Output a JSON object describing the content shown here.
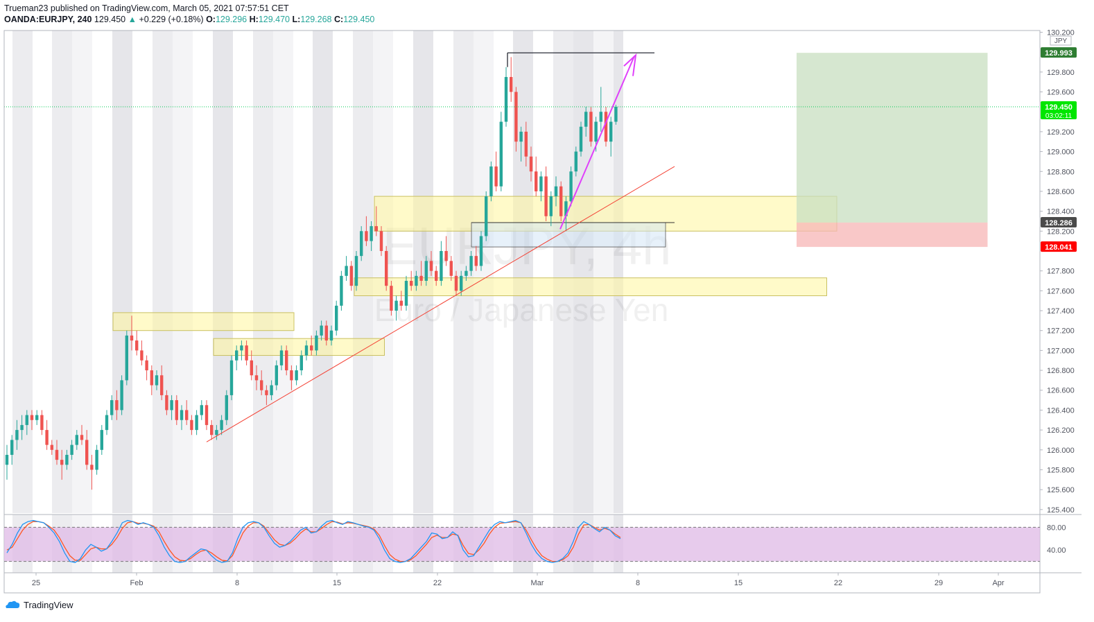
{
  "header": {
    "publisher_line": "Trueman23 published on TradingView.com, March 05, 2021 07:57:51 CET",
    "symbol": "OANDA:EURJPY, 240",
    "last": "129.450",
    "change": "+0.229 (+0.18%)",
    "o_label": "O:",
    "o": "129.296",
    "h_label": "H:",
    "h": "129.470",
    "l_label": "L:",
    "l": "129.268",
    "c_label": "C:",
    "c": "129.450"
  },
  "watermark": {
    "line1": "EURJPY, 4h",
    "line2": "Euro / Japanese Yen"
  },
  "footer": {
    "brand": "TradingView"
  },
  "colors": {
    "up": "#26a69a",
    "down": "#ef5350",
    "zone": "#fff59d",
    "long_zone": "#c8dfc0",
    "stop_zone": "#f7b5b5",
    "arrow": "#e040fb",
    "trend": "#f44336",
    "stoch_band": "#e1bee7",
    "stoch_k": "#2196f3",
    "stoch_d": "#ff5722"
  },
  "chart_data": {
    "type": "candlestick",
    "symbol": "EURJPY",
    "interval": "4h",
    "currency": "JPY",
    "y_ticks": [
      "130.200",
      "129.800",
      "129.600",
      "129.200",
      "129.000",
      "128.800",
      "128.600",
      "128.400",
      "128.200",
      "127.800",
      "127.600",
      "127.400",
      "127.200",
      "127.000",
      "126.800",
      "126.600",
      "126.400",
      "126.200",
      "126.000",
      "125.800",
      "125.600",
      "125.400"
    ],
    "ylim": [
      125.4,
      130.2
    ],
    "x_ticks": [
      "25",
      "Feb",
      "8",
      "15",
      "22",
      "Mar",
      "8",
      "15",
      "22",
      "29",
      "Apr"
    ],
    "price_labels": [
      {
        "value": 129.993,
        "text": "129.993",
        "color": "#2e7d32"
      },
      {
        "value": 129.45,
        "text": "129.450",
        "sub": "03:02:11",
        "color": "#00e600"
      },
      {
        "value": 128.286,
        "text": "128.286",
        "color": "#4a4a4a"
      },
      {
        "value": 128.041,
        "text": "128.041",
        "color": "#ff0000"
      }
    ],
    "last_price": 129.45,
    "candles": [
      [
        125.85,
        126.05,
        125.7,
        125.95
      ],
      [
        125.95,
        126.15,
        125.85,
        126.1
      ],
      [
        126.1,
        126.3,
        126.0,
        126.2
      ],
      [
        126.2,
        126.35,
        126.1,
        126.25
      ],
      [
        126.25,
        126.4,
        126.15,
        126.35
      ],
      [
        126.35,
        126.4,
        126.2,
        126.3
      ],
      [
        126.3,
        126.4,
        126.25,
        126.35
      ],
      [
        126.35,
        126.4,
        126.15,
        126.2
      ],
      [
        126.2,
        126.3,
        126.0,
        126.05
      ],
      [
        126.05,
        126.1,
        125.95,
        126.0
      ],
      [
        126.0,
        126.1,
        125.85,
        125.9
      ],
      [
        125.9,
        126.0,
        125.7,
        125.85
      ],
      [
        125.85,
        126.0,
        125.8,
        125.95
      ],
      [
        125.95,
        126.1,
        125.9,
        126.05
      ],
      [
        126.05,
        126.2,
        126.0,
        126.15
      ],
      [
        126.15,
        126.25,
        126.05,
        126.1
      ],
      [
        126.1,
        126.2,
        125.8,
        125.85
      ],
      [
        125.85,
        125.95,
        125.6,
        125.8
      ],
      [
        125.8,
        126.05,
        125.75,
        126.0
      ],
      [
        126.0,
        126.25,
        125.95,
        126.2
      ],
      [
        126.2,
        126.4,
        126.15,
        126.35
      ],
      [
        126.35,
        126.55,
        126.3,
        126.5
      ],
      [
        126.5,
        126.6,
        126.3,
        126.4
      ],
      [
        126.4,
        126.75,
        126.35,
        126.7
      ],
      [
        126.7,
        127.2,
        126.65,
        127.15
      ],
      [
        127.15,
        127.35,
        127.0,
        127.1
      ],
      [
        127.1,
        127.2,
        126.95,
        127.0
      ],
      [
        127.0,
        127.1,
        126.85,
        126.9
      ],
      [
        126.9,
        126.95,
        126.7,
        126.8
      ],
      [
        126.8,
        126.85,
        126.55,
        126.65
      ],
      [
        126.65,
        126.8,
        126.6,
        126.75
      ],
      [
        126.75,
        126.85,
        126.5,
        126.55
      ],
      [
        126.55,
        126.6,
        126.35,
        126.4
      ],
      [
        126.4,
        126.55,
        126.3,
        126.5
      ],
      [
        126.5,
        126.55,
        126.25,
        126.3
      ],
      [
        126.3,
        126.45,
        126.2,
        126.4
      ],
      [
        126.4,
        126.5,
        126.25,
        126.3
      ],
      [
        126.3,
        126.35,
        126.15,
        126.2
      ],
      [
        126.2,
        126.4,
        126.15,
        126.35
      ],
      [
        126.35,
        126.5,
        126.3,
        126.45
      ],
      [
        126.45,
        126.5,
        126.2,
        126.25
      ],
      [
        126.25,
        126.3,
        126.1,
        126.15
      ],
      [
        126.15,
        126.25,
        126.1,
        126.2
      ],
      [
        126.2,
        126.35,
        126.15,
        126.3
      ],
      [
        126.3,
        126.6,
        126.25,
        126.55
      ],
      [
        126.55,
        126.95,
        126.5,
        126.9
      ],
      [
        126.9,
        127.05,
        126.8,
        127.0
      ],
      [
        127.0,
        127.1,
        126.9,
        127.05
      ],
      [
        127.05,
        127.1,
        126.85,
        126.9
      ],
      [
        126.9,
        127.0,
        126.7,
        126.75
      ],
      [
        126.75,
        126.85,
        126.6,
        126.7
      ],
      [
        126.7,
        126.8,
        126.55,
        126.6
      ],
      [
        126.6,
        126.65,
        126.45,
        126.55
      ],
      [
        126.55,
        126.7,
        126.5,
        126.65
      ],
      [
        126.65,
        126.9,
        126.6,
        126.85
      ],
      [
        126.85,
        127.05,
        126.8,
        127.0
      ],
      [
        127.0,
        127.05,
        126.75,
        126.8
      ],
      [
        126.8,
        126.85,
        126.6,
        126.7
      ],
      [
        126.7,
        126.85,
        126.65,
        126.8
      ],
      [
        126.8,
        127.0,
        126.75,
        126.95
      ],
      [
        126.95,
        127.1,
        126.9,
        127.05
      ],
      [
        127.05,
        127.15,
        126.95,
        127.0
      ],
      [
        127.0,
        127.2,
        126.95,
        127.15
      ],
      [
        127.15,
        127.3,
        127.1,
        127.25
      ],
      [
        127.25,
        127.3,
        127.05,
        127.1
      ],
      [
        127.1,
        127.25,
        127.05,
        127.2
      ],
      [
        127.2,
        127.5,
        127.15,
        127.45
      ],
      [
        127.45,
        127.8,
        127.4,
        127.75
      ],
      [
        127.75,
        127.95,
        127.7,
        127.85
      ],
      [
        127.85,
        127.9,
        127.6,
        127.65
      ],
      [
        127.65,
        128.0,
        127.6,
        127.95
      ],
      [
        127.95,
        128.25,
        127.9,
        128.2
      ],
      [
        128.2,
        128.35,
        128.05,
        128.1
      ],
      [
        128.1,
        128.3,
        128.0,
        128.25
      ],
      [
        128.25,
        128.45,
        128.15,
        128.2
      ],
      [
        128.2,
        128.25,
        127.95,
        128.0
      ],
      [
        128.0,
        128.05,
        127.6,
        127.65
      ],
      [
        127.65,
        127.7,
        127.35,
        127.4
      ],
      [
        127.4,
        127.55,
        127.3,
        127.5
      ],
      [
        127.5,
        127.6,
        127.4,
        127.45
      ],
      [
        127.45,
        127.75,
        127.4,
        127.7
      ],
      [
        127.7,
        127.8,
        127.6,
        127.65
      ],
      [
        127.65,
        127.8,
        127.6,
        127.75
      ],
      [
        127.75,
        127.9,
        127.65,
        127.7
      ],
      [
        127.7,
        127.95,
        127.65,
        127.9
      ],
      [
        127.9,
        128.0,
        127.75,
        127.8
      ],
      [
        127.8,
        127.85,
        127.65,
        127.7
      ],
      [
        127.7,
        128.1,
        127.65,
        128.0
      ],
      [
        128.0,
        128.15,
        127.85,
        127.9
      ],
      [
        127.9,
        127.95,
        127.7,
        127.75
      ],
      [
        127.75,
        127.8,
        127.55,
        127.6
      ],
      [
        127.6,
        127.8,
        127.55,
        127.75
      ],
      [
        127.75,
        127.85,
        127.7,
        127.8
      ],
      [
        127.8,
        128.0,
        127.75,
        127.95
      ],
      [
        127.95,
        128.05,
        127.8,
        127.85
      ],
      [
        127.85,
        128.2,
        127.8,
        128.15
      ],
      [
        128.15,
        128.6,
        128.1,
        128.55
      ],
      [
        128.55,
        128.9,
        128.5,
        128.85
      ],
      [
        128.85,
        129.0,
        128.6,
        128.65
      ],
      [
        128.65,
        129.4,
        128.6,
        129.3
      ],
      [
        129.3,
        129.85,
        129.25,
        129.75
      ],
      [
        129.75,
        129.95,
        129.5,
        129.6
      ],
      [
        129.6,
        129.65,
        129.0,
        129.1
      ],
      [
        129.1,
        129.25,
        128.9,
        129.2
      ],
      [
        129.2,
        129.3,
        128.85,
        128.95
      ],
      [
        128.95,
        129.05,
        128.7,
        128.8
      ],
      [
        128.8,
        128.95,
        128.55,
        128.6
      ],
      [
        128.6,
        128.8,
        128.5,
        128.75
      ],
      [
        128.75,
        128.85,
        128.3,
        128.35
      ],
      [
        128.35,
        128.6,
        128.25,
        128.55
      ],
      [
        128.55,
        128.75,
        128.45,
        128.65
      ],
      [
        128.65,
        128.7,
        128.3,
        128.35
      ],
      [
        128.35,
        128.55,
        128.2,
        128.5
      ],
      [
        128.5,
        128.85,
        128.45,
        128.8
      ],
      [
        128.8,
        129.05,
        128.75,
        129.0
      ],
      [
        129.0,
        129.3,
        128.95,
        129.25
      ],
      [
        129.25,
        129.45,
        129.15,
        129.4
      ],
      [
        129.4,
        129.45,
        129.05,
        129.1
      ],
      [
        129.1,
        129.35,
        129.0,
        129.3
      ],
      [
        129.3,
        129.65,
        129.2,
        129.4
      ],
      [
        129.4,
        129.45,
        129.05,
        129.1
      ],
      [
        129.1,
        129.35,
        128.95,
        129.3
      ],
      [
        129.3,
        129.47,
        129.27,
        129.45
      ]
    ],
    "trend_line": {
      "from": [
        1,
        126.08
      ],
      "to": [
        56,
        128.85
      ]
    },
    "top_line": {
      "value": 129.993
    },
    "zones": [
      {
        "from": 17,
        "to": 26,
        "low": 127.2,
        "high": 127.38
      },
      {
        "from": 22,
        "to": 30.5,
        "low": 126.95,
        "high": 127.12
      },
      {
        "from": 29,
        "to": 52.5,
        "low": 127.55,
        "high": 127.73
      },
      {
        "from": 30,
        "to": 53,
        "low": 128.2,
        "high": 128.55
      }
    ],
    "long_position": {
      "from": 51,
      "to": 60.5,
      "entry": 128.286,
      "target": 129.993,
      "stop": 128.041
    },
    "arrow": {
      "from": [
        50,
        128.22
      ],
      "to": [
        56.5,
        129.97
      ]
    },
    "stochastic": {
      "levels": [
        80,
        40
      ],
      "tick_labels": [
        "80.00",
        "40.00"
      ],
      "k": [
        35,
        50,
        70,
        85,
        90,
        92,
        90,
        88,
        80,
        70,
        55,
        35,
        20,
        18,
        25,
        40,
        50,
        45,
        38,
        42,
        55,
        70,
        88,
        92,
        90,
        85,
        88,
        85,
        80,
        65,
        45,
        30,
        20,
        18,
        20,
        28,
        35,
        42,
        40,
        30,
        22,
        18,
        20,
        35,
        60,
        80,
        88,
        90,
        88,
        80,
        65,
        52,
        45,
        48,
        55,
        65,
        75,
        80,
        70,
        72,
        82,
        90,
        92,
        88,
        85,
        90,
        88,
        85,
        82,
        80,
        75,
        60,
        40,
        25,
        20,
        18,
        20,
        25,
        35,
        45,
        55,
        70,
        68,
        60,
        62,
        72,
        65,
        40,
        28,
        30,
        45,
        60,
        75,
        85,
        90,
        88,
        90,
        92,
        88,
        70,
        50,
        35,
        25,
        20,
        18,
        20,
        25,
        35,
        55,
        80,
        90,
        85,
        78,
        72,
        80,
        75,
        65,
        60
      ],
      "d": [
        40,
        45,
        60,
        75,
        85,
        90,
        90,
        88,
        82,
        75,
        62,
        45,
        30,
        22,
        22,
        32,
        42,
        45,
        42,
        42,
        50,
        62,
        78,
        88,
        90,
        87,
        87,
        85,
        82,
        72,
        55,
        40,
        28,
        22,
        21,
        25,
        32,
        38,
        40,
        35,
        28,
        22,
        21,
        30,
        50,
        70,
        82,
        88,
        88,
        82,
        70,
        58,
        50,
        48,
        52,
        60,
        70,
        77,
        72,
        72,
        78,
        85,
        90,
        89,
        86,
        88,
        87,
        85,
        83,
        81,
        77,
        66,
        48,
        32,
        24,
        20,
        20,
        23,
        30,
        40,
        50,
        62,
        66,
        62,
        62,
        68,
        66,
        48,
        34,
        32,
        40,
        52,
        68,
        80,
        87,
        88,
        89,
        90,
        88,
        75,
        58,
        42,
        30,
        24,
        20,
        20,
        23,
        30,
        45,
        68,
        84,
        85,
        80,
        75,
        78,
        75,
        68,
        62
      ]
    }
  }
}
